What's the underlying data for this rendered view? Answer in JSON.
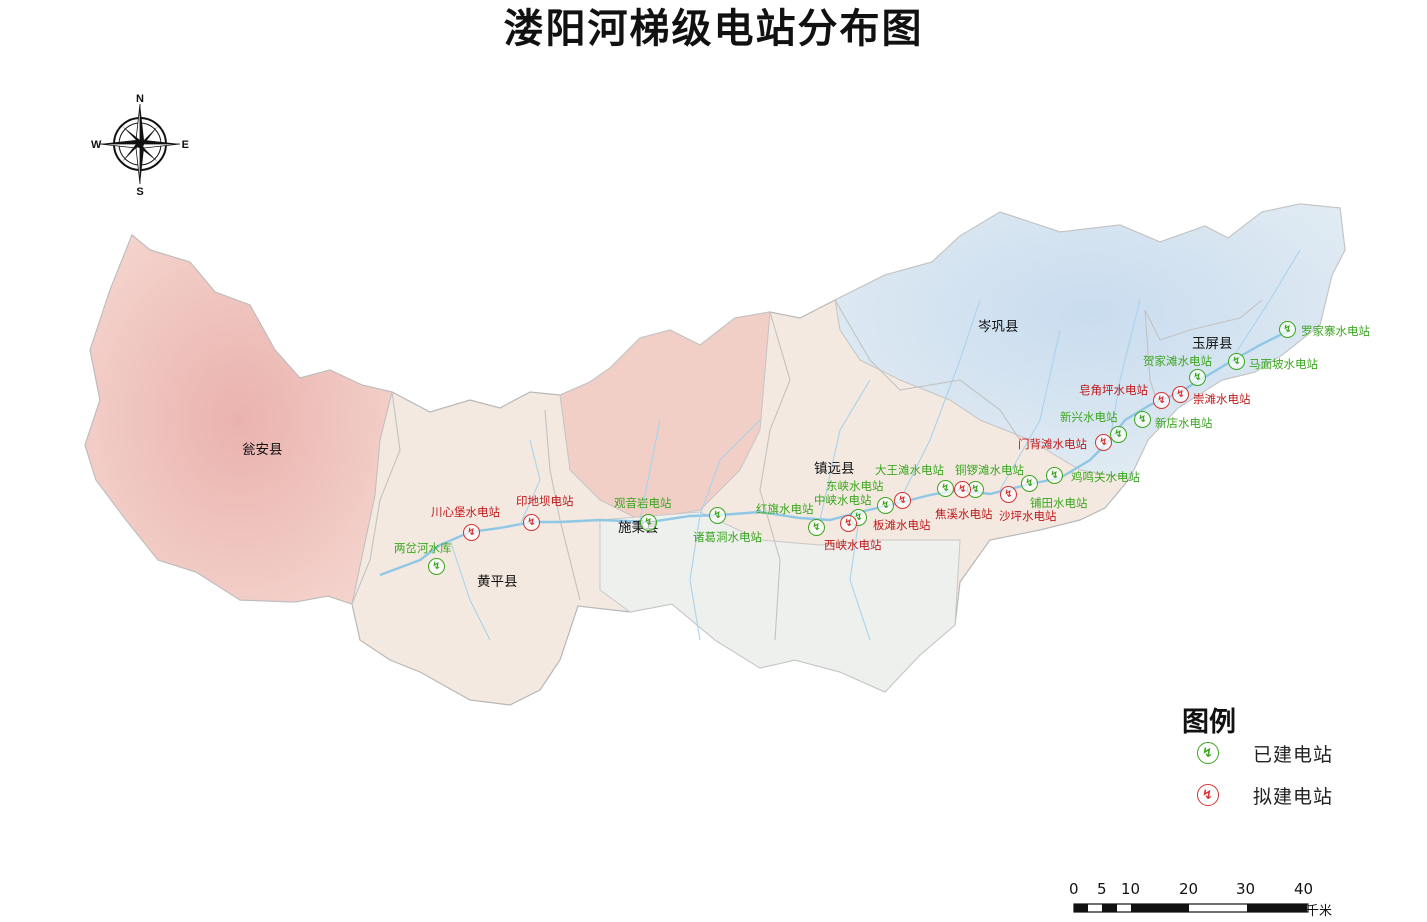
{
  "title": "溇阳河梯级电站分布图",
  "compass": {
    "n": "N",
    "s": "S",
    "e": "E",
    "w": "W"
  },
  "counties": [
    {
      "name": "瓮安县",
      "id": "county-wengan"
    },
    {
      "name": "黄平县",
      "id": "county-huangping"
    },
    {
      "name": "施秉县",
      "id": "county-shibing"
    },
    {
      "name": "镇远县",
      "id": "county-zhenyuan"
    },
    {
      "name": "岑巩县",
      "id": "county-cengong"
    },
    {
      "name": "玉屏县",
      "id": "county-yuping"
    }
  ],
  "stations": [
    {
      "name": "两岔河水库",
      "status": "built"
    },
    {
      "name": "川心堡水电站",
      "status": "planned"
    },
    {
      "name": "印地坝电站",
      "status": "planned"
    },
    {
      "name": "观音岩电站",
      "status": "built"
    },
    {
      "name": "诸葛洞水电站",
      "status": "built"
    },
    {
      "name": "红旗水电站",
      "status": "built"
    },
    {
      "name": "东峡水电站",
      "status": "built"
    },
    {
      "name": "中峡水电站",
      "status": "built"
    },
    {
      "name": "西峡水电站",
      "status": "planned"
    },
    {
      "name": "板滩水电站",
      "status": "planned"
    },
    {
      "name": "大王滩水电站",
      "status": "built"
    },
    {
      "name": "铜锣滩水电站",
      "status": "built"
    },
    {
      "name": "焦溪水电站",
      "status": "planned"
    },
    {
      "name": "沙坪水电站",
      "status": "planned"
    },
    {
      "name": "铺田水电站",
      "status": "built"
    },
    {
      "name": "鸡鸣关水电站",
      "status": "built"
    },
    {
      "name": "门背滩水电站",
      "status": "planned"
    },
    {
      "name": "新兴水电站",
      "status": "built"
    },
    {
      "name": "新店水电站",
      "status": "built"
    },
    {
      "name": "皂角坪水电站",
      "status": "planned"
    },
    {
      "name": "崇滩水电站",
      "status": "planned"
    },
    {
      "name": "贺家滩水电站",
      "status": "built"
    },
    {
      "name": "马面坡水电站",
      "status": "built"
    },
    {
      "name": "罗家寨水电站",
      "status": "built"
    }
  ],
  "legend": {
    "title": "图例",
    "built": "已建电站",
    "planned": "拟建电站",
    "built_color": "#3aa61e",
    "planned_color": "#d33434"
  },
  "scale": {
    "ticks": [
      "0",
      "5",
      "10",
      "20",
      "30",
      "40"
    ],
    "unit": "千米"
  }
}
